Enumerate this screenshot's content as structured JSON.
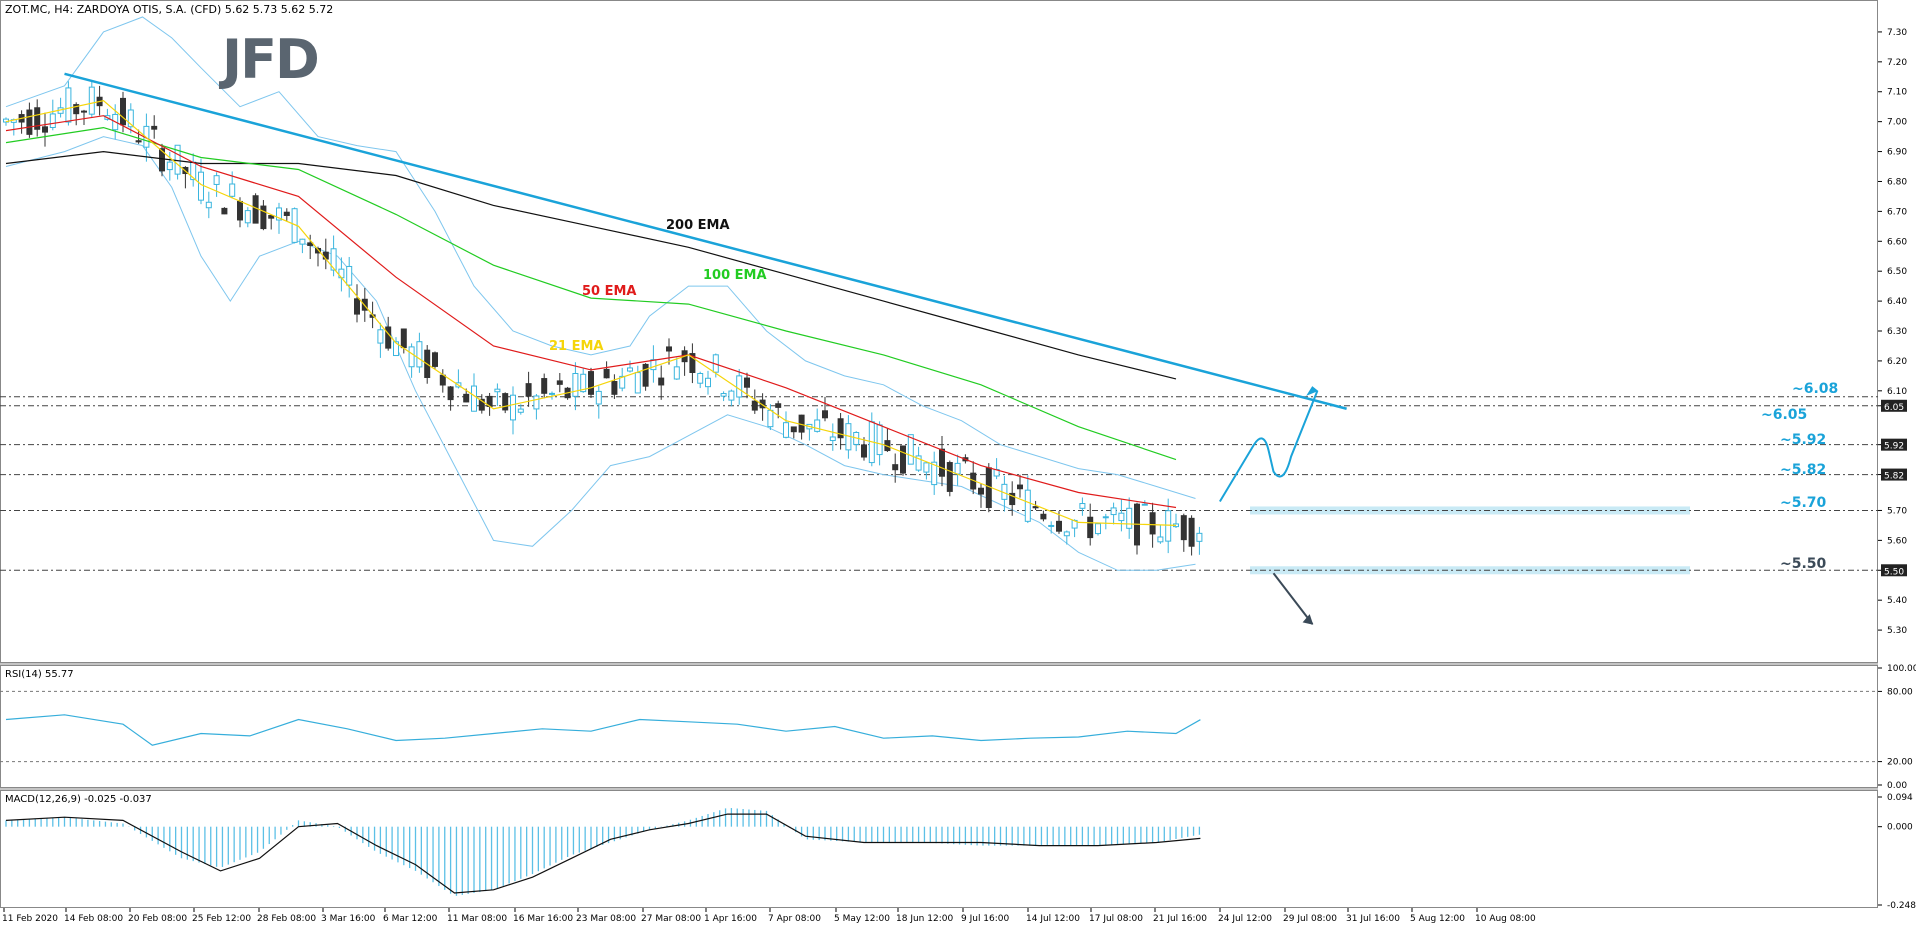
{
  "window": {
    "title": "ZOT.MC, H4:  ZARDOYA OTIS, S.A. (CFD)  5.62 5.73 5.62 5.72",
    "logo_text": "JFD"
  },
  "colors": {
    "ema21": "#f5d50a",
    "ema50": "#e01b1b",
    "ema100": "#22cc22",
    "ema200": "#111111",
    "bollinger": "#7ec6ee",
    "trendline": "#1aa3d9",
    "candle_up": "#3ab5de",
    "candle_down": "#333333",
    "grid_dash": "#444444",
    "band_fill": "#bfe6f3",
    "rsi_line": "#36aedb",
    "macd_hist": "#5cc0e6",
    "macd_signal": "#111111",
    "arrow_up": "#1aa3d9",
    "arrow_down": "#3b4a58"
  },
  "chart_data": [
    {
      "type": "line",
      "title": "ZOT.MC, H4:  ZARDOYA OTIS, S.A. (CFD)  5.62 5.73 5.62 5.72",
      "ylim": [
        5.2,
        7.38
      ],
      "y_ticks": [
        "7.30",
        "7.20",
        "7.10",
        "7.00",
        "6.90",
        "6.80",
        "6.70",
        "6.60",
        "6.50",
        "6.40",
        "6.30",
        "6.20",
        "6.10",
        "6.05",
        "5.92",
        "5.82",
        "5.70",
        "5.60",
        "5.50",
        "5.40",
        "5.30"
      ],
      "x_ticks": [
        "11 Feb 2020",
        "14 Feb 08:00",
        "20 Feb 08:00",
        "25 Feb 12:00",
        "28 Feb 08:00",
        "3 Mar 16:00",
        "6 Mar 12:00",
        "11 Mar 08:00",
        "16 Mar 16:00",
        "23 Mar 08:00",
        "27 Mar 08:00",
        "1 Apr 16:00",
        "7 Apr 08:00",
        "5 May 12:00",
        "18 Jun 12:00",
        "9 Jul 16:00",
        "14 Jul 12:00",
        "17 Jul 08:00",
        "21 Jul 16:00",
        "24 Jul 12:00",
        "29 Jul 08:00",
        "31 Jul 16:00",
        "5 Aug 12:00",
        "10 Aug 08:00"
      ],
      "series": [
        {
          "name": "200 EMA",
          "x": [
            0,
            100,
            200,
            300,
            400,
            500,
            600,
            700,
            800,
            900,
            1000,
            1100,
            1200
          ],
          "values": [
            6.86,
            6.9,
            6.86,
            6.86,
            6.82,
            6.72,
            6.65,
            6.58,
            6.49,
            6.4,
            6.31,
            6.22,
            6.14
          ]
        },
        {
          "name": "100 EMA",
          "x": [
            0,
            100,
            200,
            300,
            400,
            500,
            600,
            700,
            800,
            900,
            1000,
            1100,
            1200
          ],
          "values": [
            6.93,
            6.98,
            6.88,
            6.84,
            6.69,
            6.52,
            6.41,
            6.39,
            6.3,
            6.22,
            6.12,
            5.98,
            5.87
          ]
        },
        {
          "name": "50 EMA",
          "x": [
            0,
            100,
            200,
            300,
            400,
            500,
            600,
            700,
            800,
            900,
            1000,
            1100,
            1200
          ],
          "values": [
            6.97,
            7.02,
            6.85,
            6.75,
            6.48,
            6.25,
            6.17,
            6.22,
            6.11,
            5.98,
            5.85,
            5.76,
            5.71
          ]
        },
        {
          "name": "21 EMA",
          "x": [
            0,
            100,
            200,
            300,
            400,
            500,
            600,
            700,
            800,
            900,
            1000,
            1100,
            1200
          ],
          "values": [
            7.0,
            7.07,
            6.79,
            6.65,
            6.26,
            6.04,
            6.11,
            6.22,
            6.0,
            5.92,
            5.79,
            5.66,
            5.65
          ]
        }
      ],
      "annotations": [
        {
          "label": "200 EMA"
        },
        {
          "label": "100 EMA"
        },
        {
          "label": "50 EMA"
        },
        {
          "label": "21 EMA"
        }
      ],
      "levels": [
        {
          "value": 6.08,
          "label": "~6.08",
          "axis_label": "6.08"
        },
        {
          "value": 6.05,
          "label": "~6.05",
          "axis_label": "6.05"
        },
        {
          "value": 5.92,
          "label": "~5.92",
          "axis_label": "5.92"
        },
        {
          "value": 5.82,
          "label": "~5.82",
          "axis_label": "5.82"
        },
        {
          "value": 5.7,
          "label": "~5.70",
          "axis_label": ""
        },
        {
          "value": 5.5,
          "label": "~5.50",
          "axis_label": "5.50"
        }
      ],
      "trendline": {
        "x": [
          60,
          1375
        ],
        "values": [
          7.16,
          6.04
        ]
      },
      "grid": false
    },
    {
      "type": "line",
      "title": "RSI(14) 55.77",
      "ylim": [
        0,
        100
      ],
      "y_ticks": [
        "100.00",
        "80.00",
        "20.00",
        "0.00"
      ],
      "levels": [
        80,
        20
      ],
      "series": [
        {
          "name": "RSI(14)",
          "x": [
            0,
            60,
            120,
            150,
            200,
            250,
            300,
            350,
            400,
            450,
            500,
            550,
            600,
            650,
            700,
            750,
            800,
            850,
            900,
            950,
            1000,
            1050,
            1100,
            1150,
            1200,
            1225
          ],
          "values": [
            56,
            60,
            52,
            34,
            44,
            42,
            56,
            48,
            38,
            40,
            44,
            48,
            46,
            56,
            54,
            52,
            46,
            50,
            40,
            42,
            38,
            40,
            41,
            46,
            44,
            55.77
          ]
        }
      ]
    },
    {
      "type": "bar",
      "title": "MACD(12,26,9) -0.025 -0.037",
      "ylim": [
        -0.248,
        0.094
      ],
      "y_ticks": [
        "0.094",
        "0.000",
        "-0.248"
      ],
      "series": [
        {
          "name": "MACD",
          "x": [
            0,
            60,
            120,
            180,
            220,
            260,
            300,
            340,
            380,
            420,
            460,
            500,
            540,
            580,
            620,
            660,
            700,
            740,
            780,
            820,
            880,
            940,
            1000,
            1060,
            1120,
            1180,
            1225
          ],
          "values": [
            0.02,
            0.03,
            0.01,
            -0.1,
            -0.13,
            -0.08,
            0.02,
            0.0,
            -0.08,
            -0.14,
            -0.22,
            -0.2,
            -0.15,
            -0.09,
            -0.05,
            -0.01,
            0.02,
            0.06,
            0.05,
            -0.04,
            -0.05,
            -0.05,
            -0.06,
            -0.06,
            -0.06,
            -0.05,
            -0.025
          ]
        },
        {
          "name": "Signal",
          "x": [
            0,
            60,
            120,
            180,
            220,
            260,
            300,
            340,
            380,
            420,
            460,
            500,
            540,
            580,
            620,
            660,
            700,
            740,
            780,
            820,
            880,
            940,
            1000,
            1060,
            1120,
            1180,
            1225
          ],
          "values": [
            0.02,
            0.03,
            0.02,
            -0.08,
            -0.14,
            -0.1,
            0.0,
            0.01,
            -0.06,
            -0.12,
            -0.21,
            -0.2,
            -0.16,
            -0.1,
            -0.04,
            -0.01,
            0.01,
            0.04,
            0.04,
            -0.03,
            -0.05,
            -0.05,
            -0.05,
            -0.06,
            -0.06,
            -0.05,
            -0.037
          ]
        }
      ]
    }
  ]
}
